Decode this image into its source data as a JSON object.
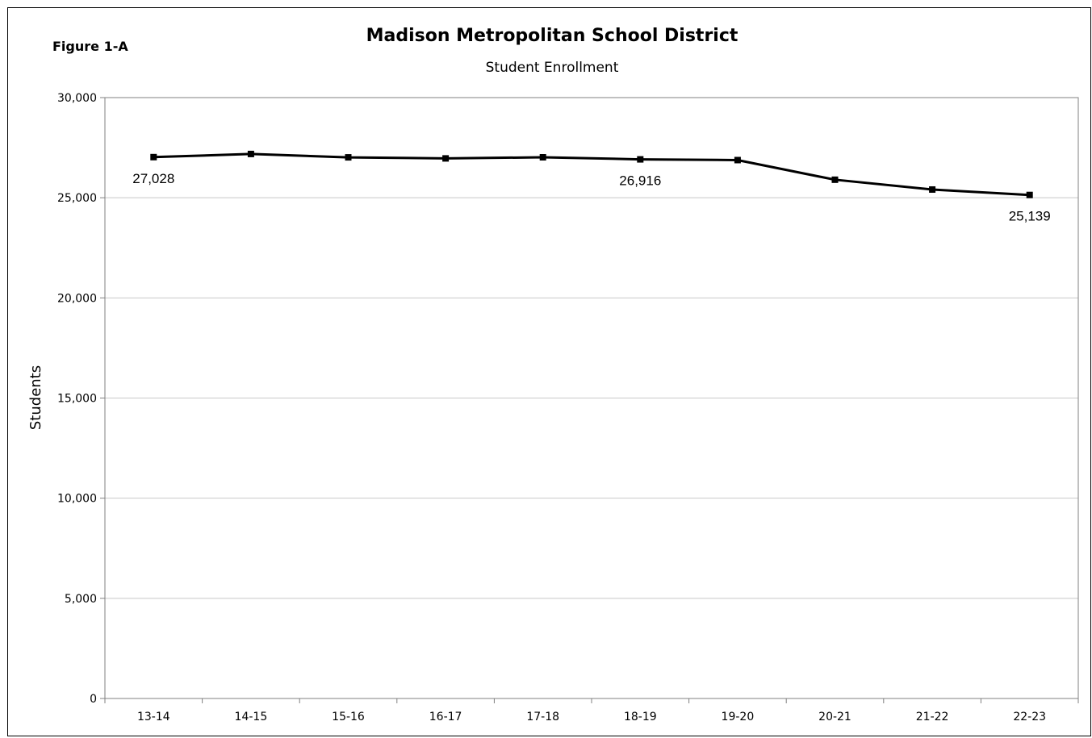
{
  "figure_label": "Figure 1-A",
  "chart_data": {
    "type": "line",
    "title": "Madison Metropolitan School District",
    "subtitle": "Student Enrollment",
    "xlabel": "",
    "ylabel": "Students",
    "categories": [
      "13-14",
      "14-15",
      "15-16",
      "16-17",
      "17-18",
      "18-19",
      "19-20",
      "20-21",
      "21-22",
      "22-23"
    ],
    "series": [
      {
        "values": [
          27028,
          27185,
          27017,
          26964,
          27020,
          26916,
          26880,
          25900,
          25410,
          25139
        ]
      }
    ],
    "ylim": [
      0,
      30000
    ],
    "yticks": [
      0,
      5000,
      10000,
      15000,
      20000,
      25000,
      30000
    ],
    "ytick_labels": [
      "0",
      "5,000",
      "10,000",
      "15,000",
      "20,000",
      "25,000",
      "30,000"
    ],
    "data_labels": [
      {
        "index": 0,
        "text": "27,028"
      },
      {
        "index": 5,
        "text": "26,916"
      },
      {
        "index": 9,
        "text": "25,139"
      }
    ],
    "grid": true,
    "colors": {
      "line": "#000000",
      "grid": "#c8c8c8",
      "axis": "#808080"
    }
  }
}
